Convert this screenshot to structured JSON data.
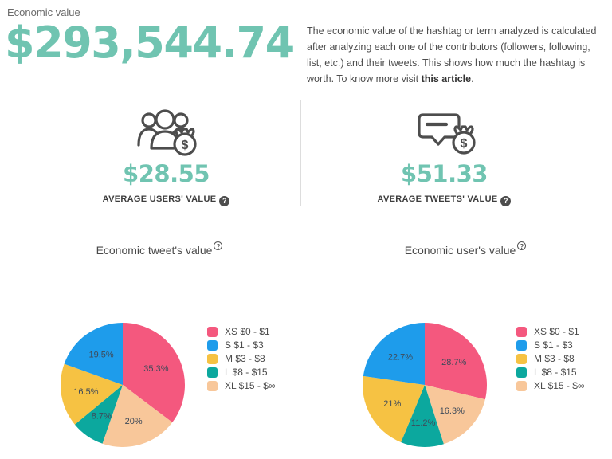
{
  "page": {
    "section_label": "Economic value",
    "total_value": "$293,544.74",
    "description": {
      "text": "The economic value of the hashtag or term analyzed is calculated after analyzing each one of the contributors (followers, following, list, etc.) and their tweets. This shows how much the hashtag is worth. To know more visit ",
      "link_text": "this article",
      "suffix": "."
    }
  },
  "stats": [
    {
      "id": "users",
      "value": "$28.55",
      "label": "AVERAGE USERS' VALUE",
      "help_icon": "question-mark-icon"
    },
    {
      "id": "tweets",
      "value": "$51.33",
      "label": "AVERAGE TWEETS' VALUE",
      "help_icon": "question-mark-icon"
    }
  ],
  "help_glyph": "?",
  "colors": {
    "accent_teal": "#70c4b1",
    "pie_xs_pink": "#f4587e",
    "pie_s_blue": "#1e9ceb",
    "pie_m_yellow": "#f6c243",
    "pie_l_teal": "#0ca89e",
    "pie_xl_peach": "#f8c79a",
    "divider": "#dddddd",
    "icon_stroke": "#4d4d4d",
    "slice_label": "#3e4a59"
  },
  "chart_data": [
    {
      "type": "pie",
      "title": "Economic tweet's value",
      "legend_position": "right",
      "categories": [
        "XS $0 - $1",
        "S $1 - $3",
        "M $3 - $8",
        "L $8 - $15",
        "XL $15 - $∞"
      ],
      "values": [
        35.3,
        19.5,
        16.5,
        8.7,
        20
      ],
      "labels": [
        "35.3%",
        "19.5%",
        "16.5%",
        "8.7%",
        "20%"
      ],
      "colors": [
        "#f4587e",
        "#1e9ceb",
        "#f6c243",
        "#0ca89e",
        "#f8c79a"
      ],
      "unit": "%",
      "start_angle": "top",
      "order_note": "first slice clockwise from top, remaining slices counterclockwise"
    },
    {
      "type": "pie",
      "title": "Economic user's value",
      "legend_position": "right",
      "categories": [
        "XS $0 - $1",
        "S $1 - $3",
        "M $3 - $8",
        "L $8 - $15",
        "XL $15 - $∞"
      ],
      "values": [
        28.7,
        22.7,
        21,
        11.2,
        16.3
      ],
      "labels": [
        "28.7%",
        "22.7%",
        "21%",
        "11.2%",
        "16.3%"
      ],
      "colors": [
        "#f4587e",
        "#1e9ceb",
        "#f6c243",
        "#0ca89e",
        "#f8c79a"
      ],
      "unit": "%",
      "start_angle": "top",
      "order_note": "first slice clockwise from top, remaining slices counterclockwise"
    }
  ]
}
